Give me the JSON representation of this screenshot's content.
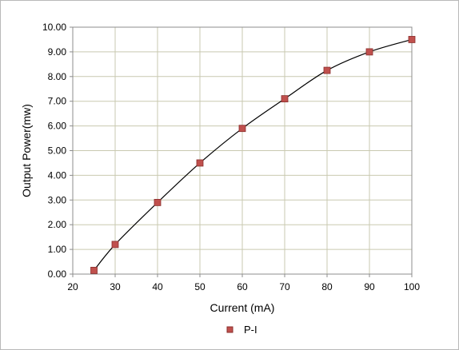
{
  "chart_data": {
    "type": "scatter",
    "xlabel": "Current (mA)",
    "ylabel": "Output Power(mw)",
    "xlim": [
      20,
      100
    ],
    "ylim": [
      0,
      10
    ],
    "x_ticks": [
      "20",
      "30",
      "40",
      "50",
      "60",
      "70",
      "80",
      "90",
      "100"
    ],
    "y_ticks": [
      "0.00",
      "1.00",
      "2.00",
      "3.00",
      "4.00",
      "5.00",
      "6.00",
      "7.00",
      "8.00",
      "9.00",
      "10.00"
    ],
    "grid": true,
    "legend_position": "bottom",
    "series": [
      {
        "name": "P-I",
        "marker": "square",
        "color": "#c0504d",
        "trendline": "smooth",
        "x": [
          25,
          30,
          40,
          50,
          60,
          70,
          80,
          90,
          100
        ],
        "y": [
          0.15,
          1.2,
          2.9,
          4.5,
          5.9,
          7.1,
          8.25,
          9.0,
          9.5
        ]
      }
    ],
    "colors": {
      "grid": "#c9c9b0",
      "axis": "#8c8c8c",
      "curve": "#000000",
      "marker_fill": "#c0504d",
      "marker_stroke": "#8a2f2d",
      "border": "#b9b9b9"
    }
  }
}
